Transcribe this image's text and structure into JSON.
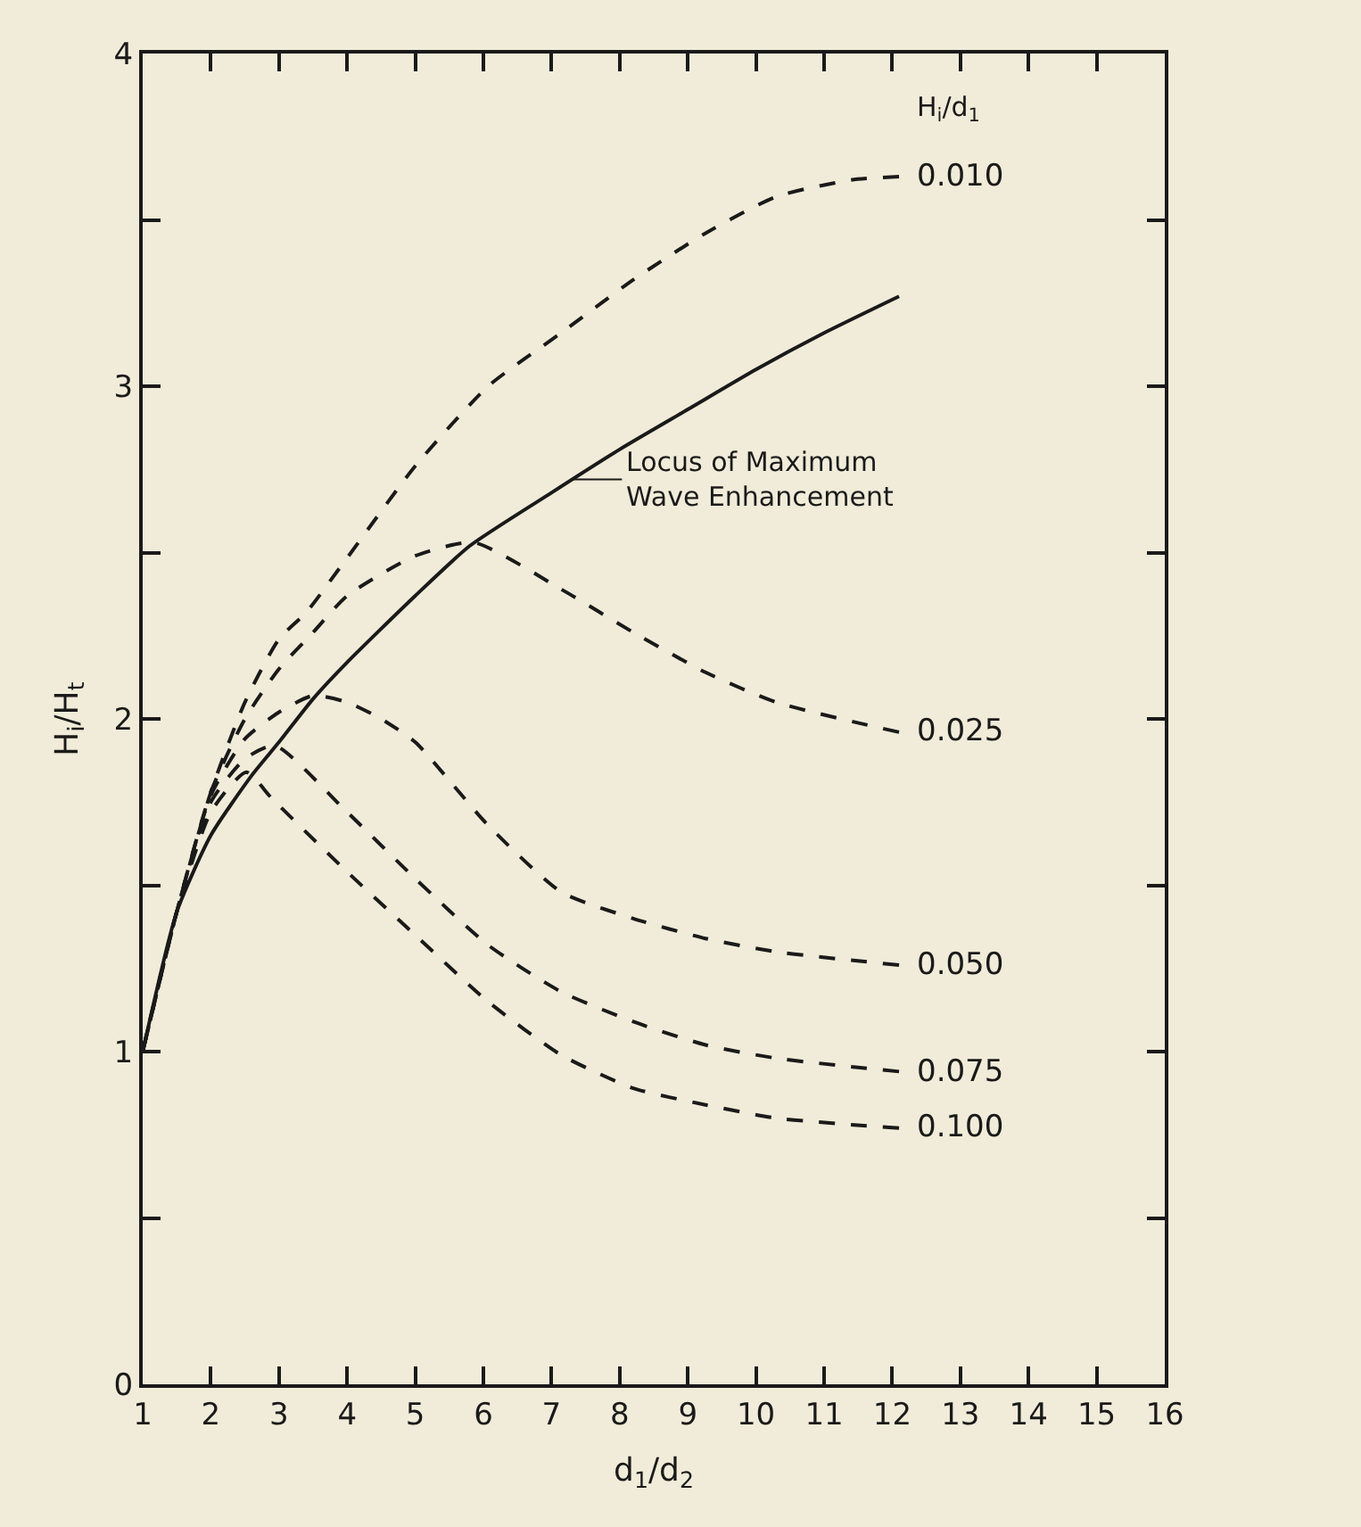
{
  "chart_data": {
    "type": "line",
    "xlabel": "d$_{1}$/d$_{2}$",
    "ylabel": "H$_{i}$/H$_{t}$",
    "legend_title": "H$_{i}$/d$_{1}$",
    "xlim": [
      1,
      16
    ],
    "ylim": [
      0,
      4
    ],
    "xticks": [
      1,
      2,
      3,
      4,
      5,
      6,
      7,
      8,
      9,
      10,
      11,
      12,
      13,
      14,
      15,
      16
    ],
    "yticks": [
      0,
      {
        "value": 0.5,
        "label": null
      },
      1,
      {
        "value": 1.5,
        "label": null
      },
      2,
      {
        "value": 2.5,
        "label": null
      },
      3,
      {
        "value": 3.5,
        "label": null
      },
      4
    ],
    "grid": false,
    "legend": false,
    "marker": "none",
    "series": [
      {
        "color": "#1a1a1a",
        "line_style": "solid",
        "x": [
          1,
          1.5,
          2,
          2.6,
          3,
          3.5,
          4,
          5,
          5.8,
          7,
          8,
          9,
          10,
          11,
          12.1
        ],
        "values": [
          1.0,
          1.42,
          1.65,
          1.83,
          1.93,
          2.06,
          2.17,
          2.37,
          2.52,
          2.68,
          2.81,
          2.93,
          3.05,
          3.16,
          3.27
        ]
      },
      {
        "name": "0.010",
        "color": "#1a1a1a",
        "line_style": "dashed",
        "x": [
          1,
          1.5,
          2,
          2.5,
          3,
          3.4,
          3.95,
          5.0,
          6.07,
          7.14,
          8.2,
          9.26,
          10.3,
          11.4,
          12.1
        ],
        "values": [
          1.0,
          1.42,
          1.78,
          2.05,
          2.24,
          2.32,
          2.47,
          2.76,
          3.0,
          3.16,
          3.32,
          3.46,
          3.57,
          3.62,
          3.63
        ]
      },
      {
        "name": "0.025",
        "color": "#1a1a1a",
        "line_style": "dashed",
        "x": [
          1,
          1.5,
          2,
          2.5,
          3,
          3.5,
          4,
          5,
          5.86,
          7.14,
          8.2,
          9.26,
          10.3,
          12.1
        ],
        "values": [
          1.0,
          1.42,
          1.78,
          2.0,
          2.15,
          2.26,
          2.37,
          2.49,
          2.53,
          2.39,
          2.26,
          2.14,
          2.05,
          1.96
        ]
      },
      {
        "name": "0.050",
        "color": "#1a1a1a",
        "line_style": "dashed",
        "x": [
          1,
          1.5,
          2,
          2.5,
          3,
          3.5,
          4,
          4.5,
          5,
          6.07,
          7.14,
          8.2,
          9.26,
          10.3,
          12.1
        ],
        "values": [
          1.0,
          1.42,
          1.77,
          1.94,
          2.02,
          2.07,
          2.05,
          2.0,
          1.93,
          1.68,
          1.48,
          1.4,
          1.34,
          1.3,
          1.26
        ]
      },
      {
        "name": "0.075",
        "color": "#1a1a1a",
        "line_style": "dashed",
        "x": [
          1,
          1.5,
          2,
          2.5,
          2.94,
          3.95,
          5.0,
          6.07,
          7.14,
          8.2,
          9.26,
          10.3,
          12.1
        ],
        "values": [
          1.0,
          1.42,
          1.75,
          1.88,
          1.92,
          1.73,
          1.52,
          1.32,
          1.18,
          1.09,
          1.02,
          0.98,
          0.94
        ]
      },
      {
        "name": "0.100",
        "color": "#1a1a1a",
        "line_style": "dashed",
        "x": [
          1,
          1.5,
          2,
          2.52,
          2.9,
          3.95,
          5.0,
          6.07,
          7.14,
          8.2,
          9.26,
          10.3,
          12.1
        ],
        "values": [
          1.0,
          1.42,
          1.72,
          1.84,
          1.76,
          1.55,
          1.35,
          1.15,
          0.99,
          0.89,
          0.84,
          0.8,
          0.77
        ]
      }
    ],
    "annotations": [
      {
        "text": "Locus of Maximum\nWave Enhancement",
        "x": 7.3,
        "y": 2.72
      }
    ]
  }
}
